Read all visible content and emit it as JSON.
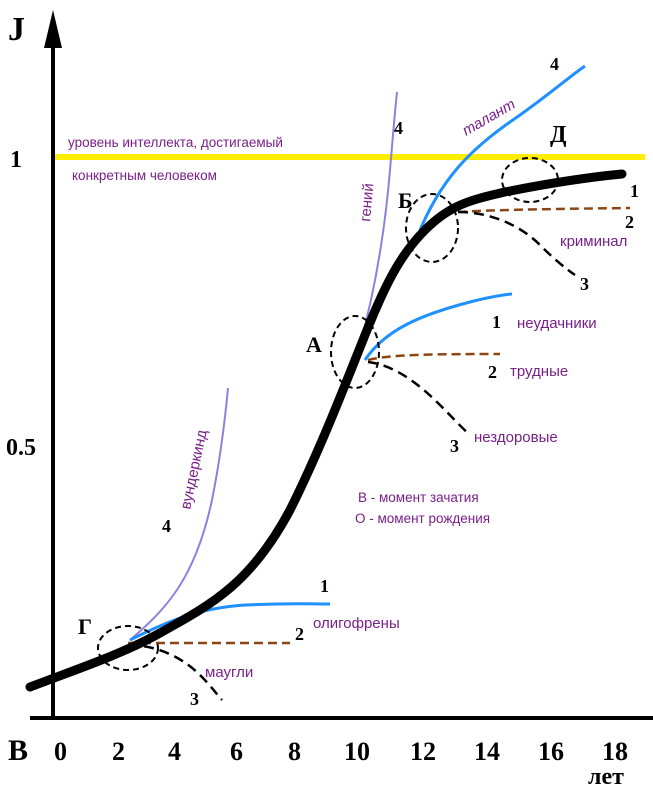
{
  "axes": {
    "y_title": "J",
    "x_unit": "лет",
    "origin_label": "В",
    "x_ticks": [
      "0",
      "2",
      "4",
      "6",
      "8",
      "10",
      "12",
      "14",
      "16",
      "18"
    ],
    "y_ticks": [
      "0.5",
      "1"
    ]
  },
  "level_line": {
    "label_line1": "уровень интеллекта, достигаемый",
    "label_line2": "конкретным человеком",
    "color": "#ffee00"
  },
  "points": {
    "G": "Г",
    "A": "А",
    "B": "Б",
    "D": "Д"
  },
  "labels": {
    "vunderkind": "вундеркинд",
    "genius": "гений",
    "talent": "талант",
    "oligophrens": "олигофрены",
    "maugli": "маугли",
    "neudachniki": "неудачники",
    "trudnye": "трудные",
    "nezdorovye": "нездоровые",
    "kriminal": "криминал"
  },
  "branch_numbers": {
    "n1": "1",
    "n2": "2",
    "n3": "3",
    "n4": "4"
  },
  "legend": {
    "line1": "В - момент зачатия",
    "line2": "О - момент рождения"
  },
  "colors": {
    "main_curve": "#000000",
    "branch_1": "#1e90ff",
    "branch_2": "#8b4513",
    "branch_3": "#000000",
    "branch_4": "#8f7fe0",
    "text": "#7a1f8a"
  }
}
